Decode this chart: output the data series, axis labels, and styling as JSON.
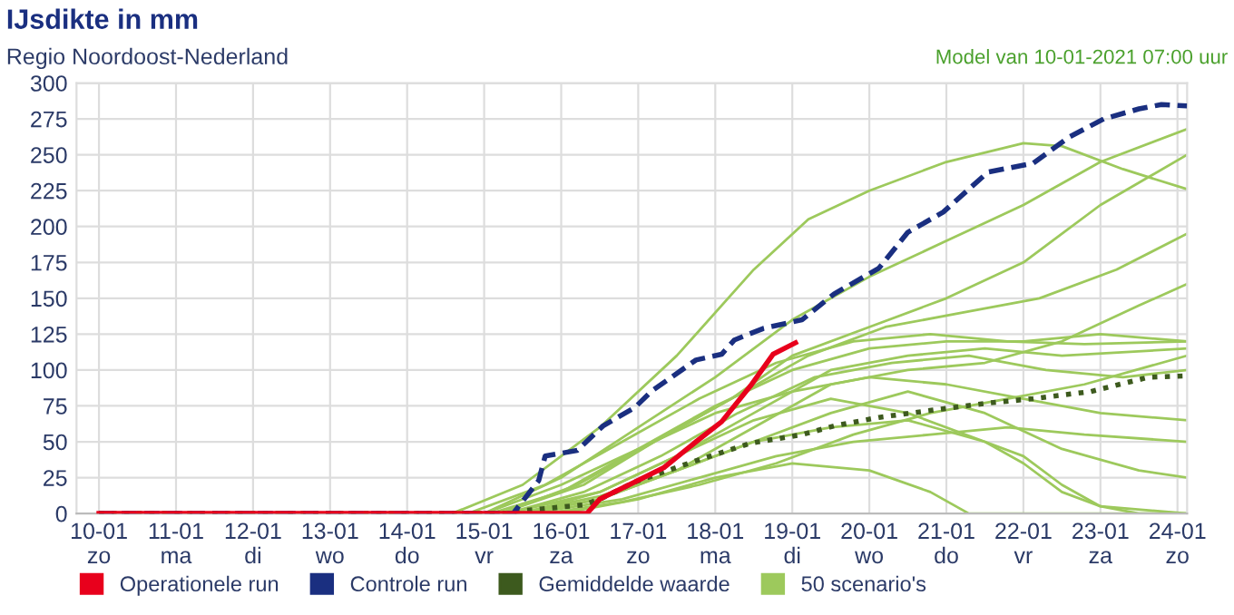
{
  "chart_data": {
    "type": "line",
    "title": "IJsdikte in mm",
    "subtitle": "Regio Noordoost-Nederland",
    "annotations": [
      "Model van 10-01-2021 07:00 uur"
    ],
    "xlim": [
      "2021-01-09T17:00",
      "2021-01-24T03:00"
    ],
    "xticks": [
      {
        "value": "2021-01-10",
        "label": "10-01\nzo"
      },
      {
        "value": "2021-01-11",
        "label": "11-01\nma"
      },
      {
        "value": "2021-01-12",
        "label": "12-01\ndi"
      },
      {
        "value": "2021-01-13",
        "label": "13-01\nwo"
      },
      {
        "value": "2021-01-14",
        "label": "14-01\ndo"
      },
      {
        "value": "2021-01-15",
        "label": "15-01\nvr"
      },
      {
        "value": "2021-01-16",
        "label": "16-01\nza"
      },
      {
        "value": "2021-01-17",
        "label": "17-01\nzo"
      },
      {
        "value": "2021-01-18",
        "label": "18-01\nma"
      },
      {
        "value": "2021-01-19",
        "label": "19-01\ndi"
      },
      {
        "value": "2021-01-20",
        "label": "20-01\nwo"
      },
      {
        "value": "2021-01-21",
        "label": "21-01\ndo"
      },
      {
        "value": "2021-01-22",
        "label": "22-01\nvr"
      },
      {
        "value": "2021-01-23",
        "label": "23-01\nza"
      },
      {
        "value": "2021-01-24",
        "label": "24-01\nzo"
      }
    ],
    "ylim": [
      0,
      300
    ],
    "yticks": [
      0,
      25,
      50,
      75,
      100,
      125,
      150,
      175,
      200,
      225,
      250,
      275,
      300
    ],
    "grid": true,
    "legend": "bottom",
    "series": [
      {
        "name": "50 scenario's",
        "color": "#9dc95c",
        "line_style": "solid",
        "x": [
          "2021-01-14T14:00",
          "2021-01-15T12:00",
          "2021-01-16T12:00",
          "2021-01-17T12:00",
          "2021-01-18T12:00",
          "2021-01-19T05:00",
          "2021-01-20T00:00",
          "2021-01-21T00:00",
          "2021-01-22T00:00",
          "2021-01-22T12:00",
          "2021-01-23T07:00",
          "2021-01-24T03:00"
        ],
        "values": [
          0,
          20,
          60,
          110,
          170,
          205,
          225,
          245,
          258,
          256,
          240,
          226
        ]
      },
      {
        "color": "#9dc95c",
        "line_style": "solid",
        "x": [
          "2021-01-15T00:00",
          "2021-01-16T00:00",
          "2021-01-17T00:00",
          "2021-01-18T00:00",
          "2021-01-19T00:00",
          "2021-01-20T00:00",
          "2021-01-21T00:00",
          "2021-01-22T00:00",
          "2021-01-23T00:00",
          "2021-01-24T03:00"
        ],
        "values": [
          0,
          25,
          60,
          95,
          135,
          165,
          190,
          215,
          245,
          268
        ]
      },
      {
        "color": "#9dc95c",
        "line_style": "solid",
        "x": [
          "2021-01-15T05:00",
          "2021-01-16T07:00",
          "2021-01-17T05:00",
          "2021-01-18T05:00",
          "2021-01-19T00:00",
          "2021-01-20T00:00",
          "2021-01-21T00:00",
          "2021-01-22T00:00",
          "2021-01-23T00:00",
          "2021-01-24T03:00"
        ],
        "values": [
          0,
          20,
          50,
          80,
          110,
          130,
          150,
          175,
          215,
          250
        ]
      },
      {
        "color": "#9dc95c",
        "line_style": "solid",
        "x": [
          "2021-01-15T02:00",
          "2021-01-16T00:00",
          "2021-01-17T00:00",
          "2021-01-18T00:00",
          "2021-01-19T00:00",
          "2021-01-20T00:00",
          "2021-01-21T00:00",
          "2021-01-22T00:00",
          "2021-01-23T00:00",
          "2021-01-24T03:00"
        ],
        "values": [
          0,
          15,
          45,
          75,
          100,
          115,
          120,
          120,
          125,
          120
        ]
      },
      {
        "color": "#9dc95c",
        "line_style": "solid",
        "x": [
          "2021-01-15T07:00",
          "2021-01-16T12:00",
          "2021-01-17T12:00",
          "2021-01-18T12:00",
          "2021-01-19T12:00",
          "2021-01-20T12:00",
          "2021-01-21T12:00",
          "2021-01-22T12:00",
          "2021-01-24T03:00"
        ],
        "values": [
          0,
          15,
          40,
          70,
          100,
          110,
          115,
          110,
          115
        ]
      },
      {
        "color": "#9dc95c",
        "line_style": "solid",
        "x": [
          "2021-01-15T12:00",
          "2021-01-16T12:00",
          "2021-01-17T12:00",
          "2021-01-18T12:00",
          "2021-01-19T12:00",
          "2021-01-20T12:00",
          "2021-01-21T12:00",
          "2021-01-22T12:00",
          "2021-01-23T12:00",
          "2021-01-24T03:00"
        ],
        "values": [
          0,
          10,
          30,
          60,
          90,
          100,
          105,
          120,
          145,
          160
        ]
      },
      {
        "color": "#9dc95c",
        "line_style": "solid",
        "x": [
          "2021-01-15T00:00",
          "2021-01-16T00:00",
          "2021-01-17T00:00",
          "2021-01-18T00:00",
          "2021-01-19T00:00",
          "2021-01-20T00:00",
          "2021-01-21T00:00",
          "2021-01-22T00:00",
          "2021-01-23T00:00",
          "2021-01-24T03:00"
        ],
        "values": [
          0,
          20,
          45,
          70,
          85,
          95,
          90,
          80,
          70,
          65
        ]
      },
      {
        "color": "#9dc95c",
        "line_style": "solid",
        "x": [
          "2021-01-15T10:00",
          "2021-01-16T12:00",
          "2021-01-17T12:00",
          "2021-01-18T12:00",
          "2021-01-19T12:00",
          "2021-01-20T12:00",
          "2021-01-21T12:00",
          "2021-01-22T00:00",
          "2021-01-22T12:00",
          "2021-01-23T00:00",
          "2021-01-23T12:00",
          "2021-01-24T03:00"
        ],
        "values": [
          0,
          12,
          30,
          50,
          60,
          65,
          50,
          40,
          20,
          5,
          0,
          0
        ]
      },
      {
        "color": "#9dc95c",
        "line_style": "solid",
        "x": [
          "2021-01-15T14:00",
          "2021-01-16T19:00",
          "2021-01-17T19:00",
          "2021-01-18T19:00",
          "2021-01-19T19:00",
          "2021-01-20T19:00",
          "2021-01-21T19:00",
          "2021-01-22T19:00",
          "2021-01-24T03:00"
        ],
        "values": [
          0,
          10,
          25,
          40,
          50,
          55,
          60,
          55,
          50
        ]
      },
      {
        "color": "#9dc95c",
        "line_style": "solid",
        "x": [
          "2021-01-15T12:00",
          "2021-01-16T12:00",
          "2021-01-17T12:00",
          "2021-01-18T12:00",
          "2021-01-19T12:00",
          "2021-01-20T12:00",
          "2021-01-21T12:00",
          "2021-01-22T00:00",
          "2021-01-22T12:00",
          "2021-01-23T00:00",
          "2021-01-24T03:00"
        ],
        "values": [
          0,
          15,
          40,
          65,
          80,
          70,
          50,
          35,
          15,
          5,
          0
        ]
      },
      {
        "color": "#9dc95c",
        "line_style": "solid",
        "x": [
          "2021-01-15T05:00",
          "2021-01-16T05:00",
          "2021-01-17T05:00",
          "2021-01-18T05:00",
          "2021-01-19T05:00",
          "2021-01-20T05:00",
          "2021-01-21T05:00",
          "2021-01-22T05:00",
          "2021-01-23T05:00",
          "2021-01-24T03:00"
        ],
        "values": [
          0,
          20,
          50,
          80,
          110,
          130,
          140,
          150,
          170,
          195
        ]
      },
      {
        "color": "#9dc95c",
        "line_style": "solid",
        "x": [
          "2021-01-16T00:00",
          "2021-01-17T00:00",
          "2021-01-18T00:00",
          "2021-01-19T00:00",
          "2021-01-20T00:00",
          "2021-01-20T19:00",
          "2021-01-21T07:00",
          "2021-01-24T03:00"
        ],
        "values": [
          0,
          10,
          25,
          35,
          30,
          15,
          0,
          0
        ]
      },
      {
        "color": "#9dc95c",
        "line_style": "solid",
        "x": [
          "2021-01-15T07:00",
          "2021-01-16T07:00",
          "2021-01-17T07:00",
          "2021-01-18T07:00",
          "2021-01-19T07:00",
          "2021-01-20T07:00",
          "2021-01-21T07:00",
          "2021-01-22T07:00",
          "2021-01-23T07:00",
          "2021-01-24T03:00"
        ],
        "values": [
          0,
          15,
          40,
          70,
          95,
          105,
          110,
          100,
          95,
          100
        ]
      },
      {
        "color": "#9dc95c",
        "line_style": "solid",
        "x": [
          "2021-01-15T19:00",
          "2021-01-16T19:00",
          "2021-01-17T19:00",
          "2021-01-18T19:00",
          "2021-01-19T19:00",
          "2021-01-20T19:00",
          "2021-01-21T19:00",
          "2021-01-22T19:00",
          "2021-01-24T03:00"
        ],
        "values": [
          0,
          8,
          20,
          35,
          55,
          70,
          80,
          90,
          110
        ]
      },
      {
        "color": "#9dc95c",
        "line_style": "solid",
        "x": [
          "2021-01-15T12:00",
          "2021-01-16T12:00",
          "2021-01-17T12:00",
          "2021-01-18T12:00",
          "2021-01-19T12:00",
          "2021-01-20T12:00",
          "2021-01-21T12:00",
          "2021-01-22T12:00",
          "2021-01-23T12:00",
          "2021-01-24T03:00"
        ],
        "values": [
          0,
          10,
          30,
          50,
          70,
          85,
          70,
          45,
          30,
          25
        ]
      },
      {
        "color": "#9dc95c",
        "line_style": "solid",
        "x": [
          "2021-01-14T19:00",
          "2021-01-15T19:00",
          "2021-01-16T19:00",
          "2021-01-17T19:00",
          "2021-01-18T19:00",
          "2021-01-19T19:00",
          "2021-01-20T19:00",
          "2021-01-21T19:00",
          "2021-01-22T19:00",
          "2021-01-24T03:00"
        ],
        "values": [
          0,
          20,
          50,
          80,
          105,
          120,
          125,
          120,
          118,
          120
        ]
      },
      {
        "name": "Gemiddelde waarde",
        "color": "#3d5a1e",
        "line_style": "dotted",
        "x": [
          "2021-01-10T00:00",
          "2021-01-15T07:00",
          "2021-01-15T12:00",
          "2021-01-16T07:00",
          "2021-01-16T12:00",
          "2021-01-16T23:00",
          "2021-01-17T17:00",
          "2021-01-18T11:00",
          "2021-01-19T03:00",
          "2021-01-19T13:00",
          "2021-01-20T03:00",
          "2021-01-20T23:00",
          "2021-01-21T13:00",
          "2021-01-22T03:00",
          "2021-01-22T21:00",
          "2021-01-23T15:00",
          "2021-01-24T03:00"
        ],
        "values": [
          0,
          0,
          2,
          6,
          10,
          22,
          36,
          49,
          55,
          61,
          67,
          73,
          77,
          80,
          85,
          95,
          96
        ]
      },
      {
        "name": "Controle run",
        "color": "#1a2f80",
        "line_style": "dashed",
        "x": [
          "2021-01-10T00:00",
          "2021-01-15T09:00",
          "2021-01-15T17:00",
          "2021-01-15T19:00",
          "2021-01-16T05:00",
          "2021-01-16T13:00",
          "2021-01-16T23:00",
          "2021-01-17T04:00",
          "2021-01-17T18:00",
          "2021-01-18T02:00",
          "2021-01-18T06:00",
          "2021-01-18T15:00",
          "2021-01-19T03:00",
          "2021-01-19T13:00",
          "2021-01-20T03:00",
          "2021-01-20T12:00",
          "2021-01-20T23:00",
          "2021-01-21T08:00",
          "2021-01-21T13:00",
          "2021-01-22T03:00",
          "2021-01-22T14:00",
          "2021-01-23T01:00",
          "2021-01-23T12:00",
          "2021-01-23T19:00",
          "2021-01-24T03:00"
        ],
        "values": [
          0,
          0,
          23,
          40,
          44,
          61,
          74,
          85,
          107,
          111,
          121,
          129,
          135,
          153,
          171,
          196,
          210,
          228,
          238,
          244,
          262,
          275,
          282,
          285,
          284
        ]
      },
      {
        "name": "Operationele run",
        "color": "#e8001c",
        "line_style": "solid",
        "x": [
          "2021-01-10T00:00",
          "2021-01-16T08:00",
          "2021-01-16T12:00",
          "2021-01-16T23:00",
          "2021-01-17T08:00",
          "2021-01-17T18:00",
          "2021-01-18T02:00",
          "2021-01-18T11:00",
          "2021-01-18T18:00",
          "2021-01-19T01:00"
        ],
        "values": [
          0,
          0,
          10,
          22,
          32,
          50,
          64,
          89,
          111,
          119
        ]
      }
    ]
  }
}
